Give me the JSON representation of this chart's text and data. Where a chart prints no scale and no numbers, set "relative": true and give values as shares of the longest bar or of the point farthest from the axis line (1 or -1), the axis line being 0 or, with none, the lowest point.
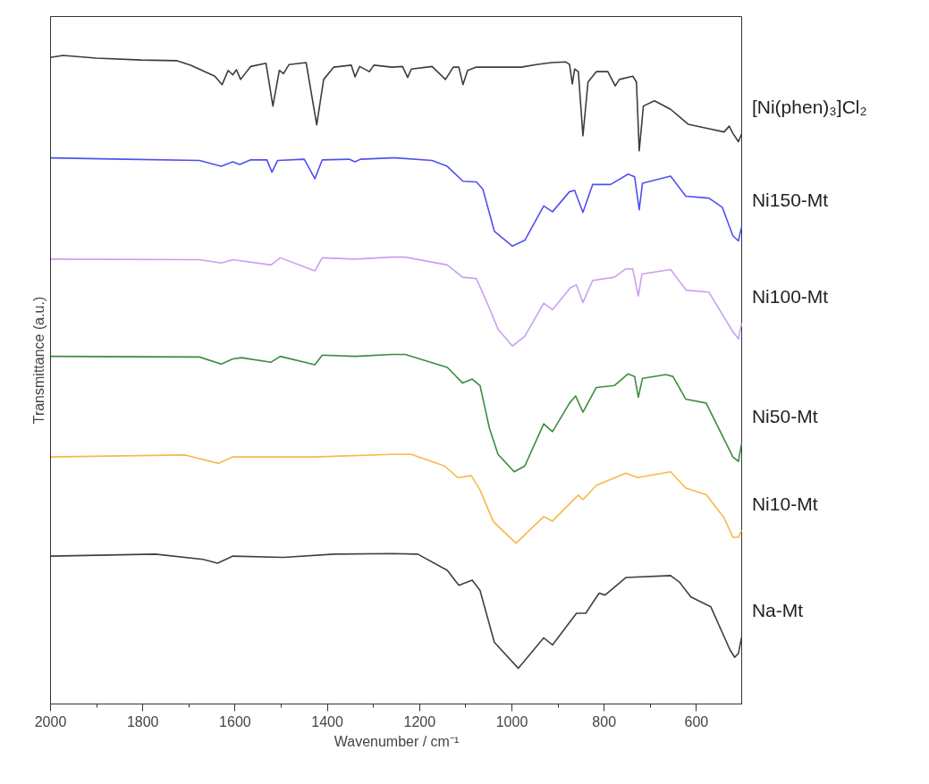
{
  "chart_data": {
    "type": "line",
    "relative": true,
    "xlabel": "Wavenumber / cm⁻¹",
    "ylabel": "Transmittance (a.u.)",
    "xlim": [
      2000,
      500
    ],
    "xticks": [
      2000,
      1800,
      1600,
      1400,
      1200,
      1000,
      800,
      600
    ],
    "grid": false,
    "tick_labels": "x",
    "series": [
      {
        "name": "[Ni(phen)₃]Cl₂",
        "color": "#3c3c3c",
        "x": [
          2000,
          1973,
          1901,
          1804,
          1727,
          1696,
          1644,
          1628,
          1615,
          1605,
          1597,
          1588,
          1566,
          1533,
          1518,
          1504,
          1495,
          1483,
          1446,
          1423,
          1408,
          1386,
          1348,
          1340,
          1330,
          1309,
          1299,
          1260,
          1237,
          1226,
          1218,
          1173,
          1144,
          1127,
          1115,
          1106,
          1096,
          1077,
          980,
          947,
          914,
          883,
          875,
          869,
          864,
          856,
          846,
          835,
          817,
          792,
          776,
          767,
          738,
          730,
          724,
          715,
          691,
          656,
          618,
          573,
          540,
          529,
          521,
          509,
          502
        ],
        "values": [
          0.997,
          1,
          0.996,
          0.993,
          0.992,
          0.985,
          0.968,
          0.955,
          0.977,
          0.97,
          0.978,
          0.963,
          0.983,
          0.988,
          0.922,
          0.977,
          0.972,
          0.986,
          0.989,
          0.893,
          0.963,
          0.982,
          0.985,
          0.967,
          0.983,
          0.975,
          0.985,
          0.982,
          0.983,
          0.966,
          0.979,
          0.983,
          0.963,
          0.982,
          0.982,
          0.955,
          0.977,
          0.982,
          0.982,
          0.986,
          0.989,
          0.99,
          0.986,
          0.956,
          0.979,
          0.975,
          0.876,
          0.959,
          0.975,
          0.975,
          0.953,
          0.963,
          0.968,
          0.959,
          0.853,
          0.922,
          0.93,
          0.917,
          0.894,
          0.887,
          0.882,
          0.891,
          0.88,
          0.867,
          0.879
        ]
      },
      {
        "name": "Ni150-Mt",
        "color": "#5050f0",
        "x": [
          2000,
          1837,
          1677,
          1630,
          1605,
          1590,
          1566,
          1531,
          1520,
          1508,
          1450,
          1427,
          1411,
          1353,
          1340,
          1328,
          1260,
          1251,
          1173,
          1140,
          1106,
          1077,
          1063,
          1038,
          999,
          972,
          931,
          912,
          875,
          864,
          846,
          825,
          786,
          748,
          734,
          724,
          717,
          656,
          623,
          573,
          544,
          521,
          509,
          502
        ],
        "values": [
          0.842,
          0.84,
          0.838,
          0.829,
          0.836,
          0.832,
          0.839,
          0.839,
          0.82,
          0.838,
          0.84,
          0.81,
          0.839,
          0.84,
          0.836,
          0.84,
          0.842,
          0.842,
          0.838,
          0.829,
          0.806,
          0.805,
          0.794,
          0.729,
          0.706,
          0.715,
          0.768,
          0.759,
          0.79,
          0.792,
          0.758,
          0.801,
          0.801,
          0.817,
          0.813,
          0.762,
          0.803,
          0.814,
          0.783,
          0.78,
          0.766,
          0.722,
          0.714,
          0.736
        ]
      },
      {
        "name": "Ni100-Mt",
        "color": "#c8a0f0",
        "x": [
          2000,
          1677,
          1630,
          1605,
          1522,
          1502,
          1427,
          1411,
          1340,
          1260,
          1231,
          1140,
          1107,
          1077,
          1057,
          1030,
          999,
          972,
          931,
          912,
          873,
          860,
          846,
          825,
          778,
          753,
          738,
          726,
          718,
          656,
          622,
          573,
          521,
          509,
          502
        ],
        "values": [
          0.686,
          0.685,
          0.68,
          0.685,
          0.677,
          0.688,
          0.668,
          0.688,
          0.686,
          0.689,
          0.689,
          0.677,
          0.658,
          0.656,
          0.624,
          0.578,
          0.552,
          0.567,
          0.618,
          0.608,
          0.642,
          0.646,
          0.619,
          0.653,
          0.658,
          0.671,
          0.671,
          0.629,
          0.663,
          0.67,
          0.638,
          0.635,
          0.574,
          0.563,
          0.587
        ]
      },
      {
        "name": "Ni50-Mt",
        "color": "#3d8b3d",
        "x": [
          2000,
          1677,
          1630,
          1605,
          1586,
          1522,
          1502,
          1427,
          1411,
          1340,
          1260,
          1231,
          1140,
          1107,
          1086,
          1069,
          1049,
          1030,
          995,
          972,
          931,
          912,
          875,
          862,
          846,
          817,
          778,
          748,
          734,
          726,
          717,
          666,
          651,
          623,
          579,
          521,
          509,
          502
        ],
        "values": [
          0.536,
          0.535,
          0.524,
          0.532,
          0.534,
          0.527,
          0.536,
          0.523,
          0.538,
          0.536,
          0.539,
          0.539,
          0.519,
          0.495,
          0.501,
          0.491,
          0.426,
          0.385,
          0.358,
          0.367,
          0.432,
          0.42,
          0.464,
          0.475,
          0.45,
          0.488,
          0.491,
          0.509,
          0.505,
          0.473,
          0.502,
          0.508,
          0.505,
          0.47,
          0.464,
          0.381,
          0.374,
          0.402
        ]
      },
      {
        "name": "Ni10-Mt",
        "color": "#f7b948",
        "x": [
          2000,
          1708,
          1636,
          1605,
          1522,
          1427,
          1260,
          1218,
          1146,
          1117,
          1088,
          1069,
          1040,
          991,
          931,
          912,
          883,
          856,
          846,
          817,
          753,
          728,
          656,
          623,
          579,
          540,
          521,
          509,
          502
        ],
        "values": [
          0.381,
          0.384,
          0.371,
          0.381,
          0.381,
          0.381,
          0.385,
          0.385,
          0.367,
          0.349,
          0.352,
          0.33,
          0.281,
          0.248,
          0.289,
          0.282,
          0.303,
          0.322,
          0.315,
          0.337,
          0.356,
          0.349,
          0.358,
          0.333,
          0.323,
          0.287,
          0.257,
          0.257,
          0.268
        ]
      },
      {
        "name": "Na-Mt",
        "color": "#404040",
        "x": [
          2000,
          1773,
          1669,
          1638,
          1605,
          1495,
          1386,
          1260,
          1204,
          1140,
          1115,
          1086,
          1069,
          1038,
          986,
          931,
          912,
          860,
          840,
          811,
          798,
          753,
          656,
          637,
          612,
          569,
          527,
          517,
          509,
          502
        ],
        "values": [
          0.228,
          0.231,
          0.223,
          0.217,
          0.228,
          0.226,
          0.231,
          0.232,
          0.231,
          0.206,
          0.183,
          0.191,
          0.175,
          0.095,
          0.055,
          0.102,
          0.091,
          0.14,
          0.14,
          0.171,
          0.168,
          0.195,
          0.198,
          0.188,
          0.165,
          0.15,
          0.083,
          0.072,
          0.078,
          0.103
        ]
      }
    ]
  }
}
